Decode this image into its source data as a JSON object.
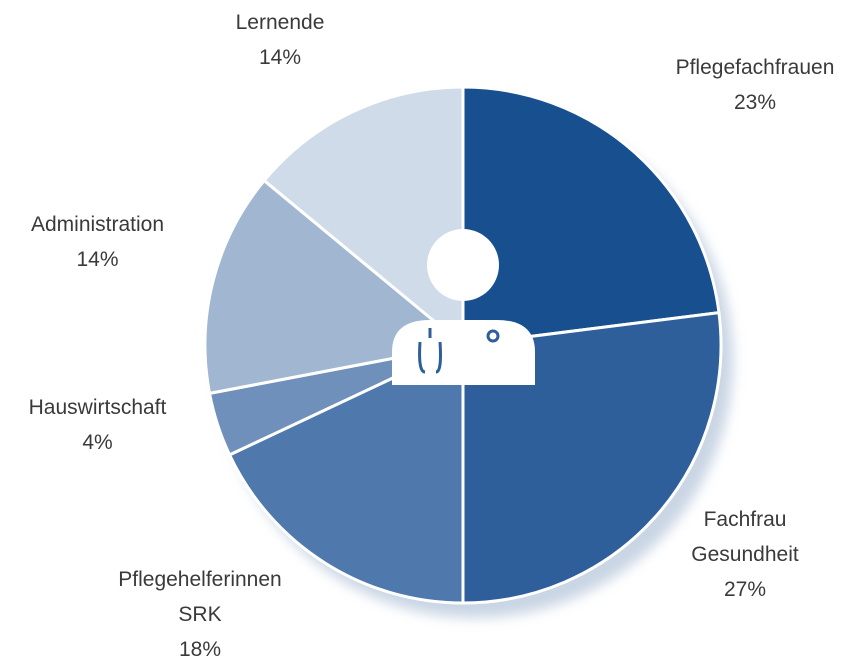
{
  "chart_data": {
    "type": "pie",
    "categories": [
      "Pflegefachfrauen",
      "Fachfrau Gesundheit",
      "Pflegehelferinnen SRK",
      "Hauswirtschaft",
      "Administration",
      "Lernende"
    ],
    "values": [
      23,
      27,
      18,
      4,
      14,
      14
    ],
    "value_labels": [
      "23%",
      "27%",
      "18%",
      "4%",
      "14%",
      "14%"
    ],
    "colors": [
      "#174f8f",
      "#2e5f9a",
      "#4f79ad",
      "#6f90bb",
      "#a0b6d1",
      "#cfdbe9"
    ]
  }
}
